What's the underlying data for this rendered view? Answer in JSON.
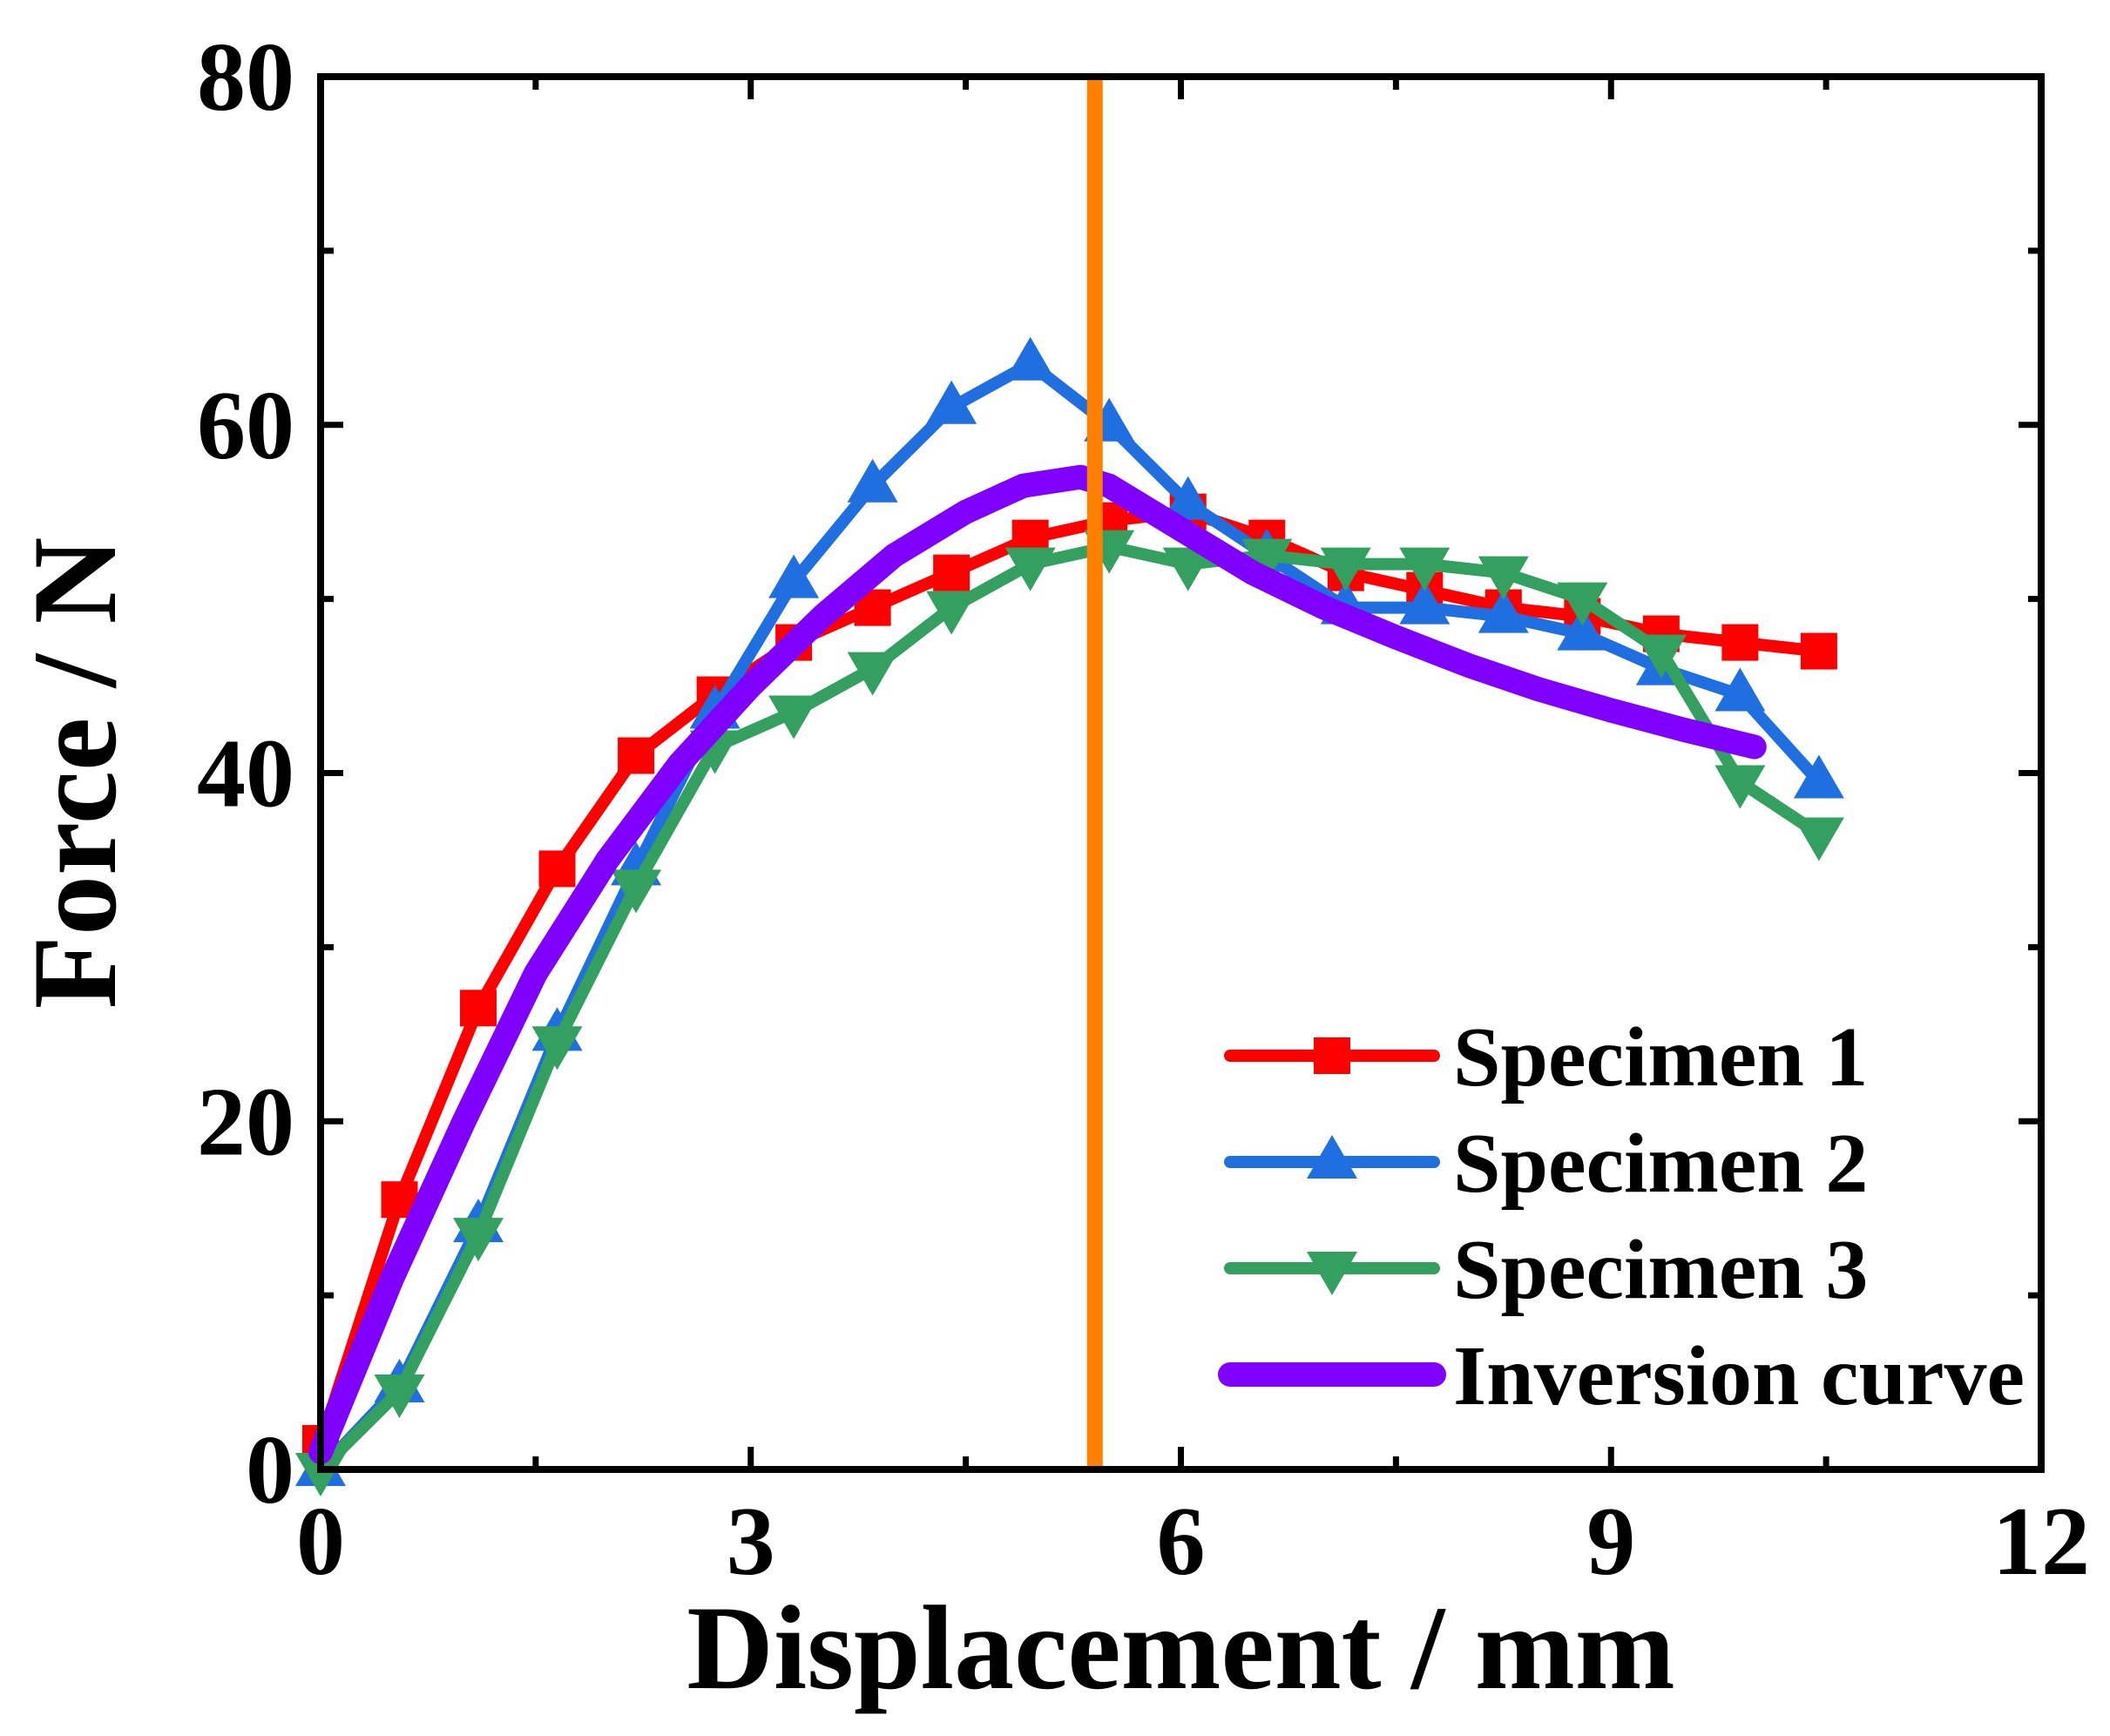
{
  "chart_data": {
    "type": "line",
    "title": "",
    "xlabel": "Displacement / mm",
    "ylabel": "Force / N",
    "xlim": [
      0,
      12
    ],
    "ylim": [
      0,
      80
    ],
    "x_ticks": [
      0,
      3,
      6,
      9,
      12
    ],
    "y_ticks": [
      0,
      20,
      40,
      60,
      80
    ],
    "x_tick_labels": [
      "0",
      "3",
      "6",
      "9",
      "12"
    ],
    "y_tick_labels": [
      "0",
      "20",
      "40",
      "60",
      "80"
    ],
    "grid": false,
    "legend_position": "bottom-right",
    "vertical_line": {
      "x": 5.4,
      "color": "#FF8000"
    },
    "series": [
      {
        "name": "Specimen 1",
        "color": "#FF0000",
        "marker": "square",
        "x": [
          0.0,
          0.55,
          1.1,
          1.65,
          2.2,
          2.75,
          3.3,
          3.85,
          4.4,
          4.95,
          5.5,
          6.05,
          6.6,
          7.15,
          7.7,
          8.25,
          8.8,
          9.35,
          9.9,
          10.45
        ],
        "y": [
          1.5,
          15.5,
          26.5,
          34.5,
          41.0,
          44.5,
          47.5,
          49.5,
          51.5,
          53.5,
          54.5,
          55.0,
          53.5,
          51.5,
          50.5,
          49.5,
          49.0,
          48.0,
          47.5,
          47.0
        ]
      },
      {
        "name": "Specimen 2",
        "color": "#1F6FE0",
        "marker": "triangle-up",
        "x": [
          0.0,
          0.55,
          1.1,
          1.65,
          2.2,
          2.75,
          3.3,
          3.85,
          4.4,
          4.95,
          5.5,
          6.05,
          6.6,
          7.15,
          7.7,
          8.25,
          8.8,
          9.35,
          9.9,
          10.45
        ],
        "y": [
          0.0,
          4.8,
          14.0,
          25.0,
          34.5,
          43.5,
          51.0,
          56.5,
          61.0,
          63.5,
          60.0,
          55.5,
          52.5,
          49.5,
          49.5,
          49.0,
          48.0,
          46.0,
          44.5,
          39.5
        ]
      },
      {
        "name": "Specimen 3",
        "color": "#33A060",
        "marker": "triangle-down",
        "x": [
          0.0,
          0.55,
          1.1,
          1.65,
          2.2,
          2.75,
          3.3,
          3.85,
          4.4,
          4.95,
          5.5,
          6.05,
          6.6,
          7.15,
          7.7,
          8.25,
          8.8,
          9.35,
          9.9,
          10.45
        ],
        "y": [
          0.0,
          4.5,
          13.5,
          24.5,
          33.5,
          41.5,
          43.5,
          46.0,
          49.5,
          52.0,
          53.0,
          52.0,
          52.5,
          52.0,
          52.0,
          51.5,
          50.0,
          47.0,
          39.5,
          36.5
        ]
      },
      {
        "name": "Inversion curve",
        "color": "#8000FF",
        "marker": "none",
        "x": [
          0.0,
          0.5,
          1.0,
          1.5,
          2.0,
          2.5,
          3.0,
          3.5,
          4.0,
          4.5,
          4.9,
          5.3,
          5.5,
          6.0,
          6.5,
          7.0,
          7.5,
          8.0,
          8.5,
          9.0,
          9.5,
          10.0
        ],
        "y": [
          1.0,
          11.0,
          20.0,
          28.5,
          35.0,
          40.5,
          45.0,
          49.0,
          52.5,
          55.0,
          56.5,
          57.0,
          56.5,
          54.0,
          51.5,
          49.5,
          47.8,
          46.2,
          44.8,
          43.6,
          42.5,
          41.5
        ]
      }
    ]
  }
}
